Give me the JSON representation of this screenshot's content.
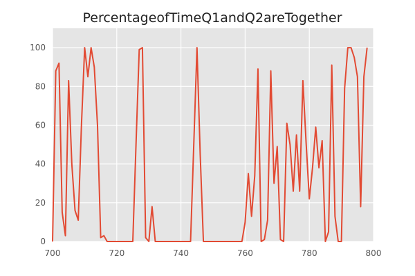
{
  "chart_data": {
    "type": "line",
    "title": "PercentageofTimeQ1andQ2areTogether",
    "xlabel": "",
    "ylabel": "",
    "xlim": [
      700,
      800
    ],
    "ylim": [
      0,
      110
    ],
    "xticks": [
      700,
      720,
      740,
      760,
      780,
      800
    ],
    "yticks": [
      0,
      20,
      40,
      60,
      80,
      100
    ],
    "grid": true,
    "colors": {
      "line": "#E24A33",
      "plot_background": "#E5E5E5",
      "grid": "#FFFFFF"
    },
    "series": [
      {
        "x": [
          700,
          701,
          702,
          703,
          704,
          705,
          706,
          707,
          708,
          709,
          710,
          711,
          712,
          713,
          714,
          715,
          716,
          717,
          718,
          719,
          720,
          721,
          722,
          723,
          724,
          725,
          726,
          727,
          728,
          729,
          730,
          731,
          732,
          733,
          734,
          735,
          736,
          737,
          738,
          739,
          740,
          741,
          742,
          743,
          744,
          745,
          746,
          747,
          748,
          749,
          750,
          751,
          752,
          753,
          754,
          755,
          756,
          757,
          758,
          759,
          760,
          761,
          762,
          763,
          764,
          765,
          766,
          767,
          768,
          769,
          770,
          771,
          772,
          773,
          774,
          775,
          776,
          777,
          778,
          779,
          780,
          781,
          782,
          783,
          784,
          785,
          786,
          787,
          788,
          789,
          790,
          791,
          792,
          793,
          794,
          795,
          796,
          797,
          798
        ],
        "y": [
          0,
          88,
          92,
          15,
          3,
          83,
          40,
          16,
          11,
          60,
          100,
          85,
          100,
          90,
          60,
          2,
          3,
          0,
          0,
          0,
          0,
          0,
          0,
          0,
          0,
          0,
          50,
          99,
          100,
          2,
          0,
          18,
          0,
          0,
          0,
          0,
          0,
          0,
          0,
          0,
          0,
          0,
          0,
          0,
          50,
          100,
          45,
          0,
          0,
          0,
          0,
          0,
          0,
          0,
          0,
          0,
          0,
          0,
          0,
          0,
          10,
          35,
          13,
          34,
          89,
          0,
          1,
          11,
          88,
          30,
          49,
          1,
          0,
          61,
          50,
          26,
          55,
          26,
          83,
          51,
          22,
          38,
          59,
          38,
          52,
          0,
          5,
          91,
          13,
          0,
          0,
          79,
          100,
          100,
          95,
          85,
          18,
          85,
          100
        ]
      }
    ]
  }
}
